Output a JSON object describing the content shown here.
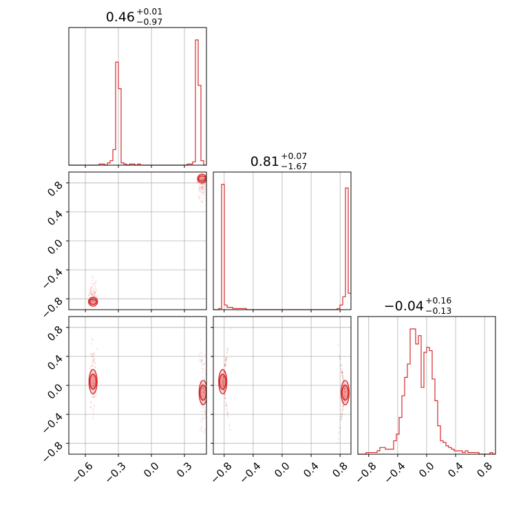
{
  "chart_data": {
    "type": "corner",
    "color": "#d62728",
    "panel_titles": [
      {
        "value": "0.46",
        "plus": "+0.01",
        "minus": "−0.97"
      },
      {
        "value": "0.81",
        "plus": "+0.07",
        "minus": "−1.67"
      },
      {
        "value": "−0.04",
        "plus": "+0.16",
        "minus": "−0.13"
      }
    ],
    "params": [
      {
        "range": [
          -0.75,
          0.5
        ],
        "ticks": [
          -0.6,
          -0.3,
          0.0,
          0.3
        ],
        "tick_labels": [
          "−0.6",
          "−0.3",
          "0.0",
          "0.3"
        ]
      },
      {
        "range": [
          -0.95,
          0.95
        ],
        "ticks": [
          -0.8,
          -0.4,
          0.0,
          0.4,
          0.8
        ],
        "tick_labels": [
          "−0.8",
          "−0.4",
          "0.0",
          "0.4",
          "0.8"
        ]
      },
      {
        "range": [
          -0.95,
          0.95
        ],
        "ticks": [
          -0.8,
          -0.4,
          0.0,
          0.4,
          0.8
        ],
        "tick_labels": [
          "−0.8",
          "−0.4",
          "0.0",
          "0.4",
          "0.8"
        ]
      }
    ],
    "histograms": [
      {
        "param": 0,
        "bins": [
          -0.75,
          0.5
        ],
        "counts": [
          0,
          0,
          0,
          0,
          0,
          0,
          0,
          0,
          0,
          0,
          0,
          1,
          1,
          0,
          2,
          4,
          14,
          93,
          69,
          2,
          1,
          0,
          1,
          1,
          0,
          1,
          0,
          0,
          0,
          0,
          0,
          0,
          0,
          0,
          0,
          0,
          0,
          0,
          0,
          0,
          0,
          0,
          0,
          1,
          1,
          3,
          113,
          72,
          4,
          0
        ]
      },
      {
        "param": 1,
        "bins": [
          -0.95,
          0.95
        ],
        "counts": [
          0,
          0,
          1,
          107,
          4,
          2,
          2,
          1,
          1,
          1,
          1,
          1,
          0,
          0,
          0,
          0,
          0,
          0,
          0,
          0,
          0,
          0,
          0,
          0,
          0,
          0,
          0,
          0,
          0,
          0,
          0,
          0,
          0,
          0,
          0,
          0,
          0,
          0,
          0,
          0,
          0,
          0,
          0,
          0,
          0,
          1,
          4,
          11,
          104,
          14
        ]
      },
      {
        "param": 2,
        "bins": [
          -0.95,
          0.95
        ],
        "counts": [
          0,
          0,
          0,
          1,
          1,
          1,
          1,
          2,
          4,
          4,
          3,
          3,
          3,
          8,
          12,
          22,
          35,
          46,
          54,
          75,
          75,
          66,
          71,
          40,
          61,
          64,
          62,
          45,
          32,
          17,
          8,
          7,
          5,
          4,
          3,
          2,
          2,
          2,
          1,
          2,
          1,
          1,
          1,
          1,
          0,
          0,
          0,
          0,
          1,
          0
        ]
      }
    ],
    "scatter_panels": [
      {
        "x_param": 0,
        "y_param": 1,
        "clusters": [
          {
            "x": 0.46,
            "y": 0.86
          },
          {
            "x": -0.53,
            "y": -0.84
          }
        ]
      },
      {
        "x_param": 0,
        "y_param": 2,
        "clusters": [
          {
            "x": -0.53,
            "y": 0.05
          },
          {
            "x": 0.47,
            "y": -0.1
          }
        ]
      },
      {
        "x_param": 1,
        "y_param": 2,
        "clusters": [
          {
            "x": -0.82,
            "y": 0.05
          },
          {
            "x": 0.87,
            "y": -0.1
          }
        ]
      }
    ],
    "grid": true,
    "xlabel": "",
    "ylabel": ""
  }
}
